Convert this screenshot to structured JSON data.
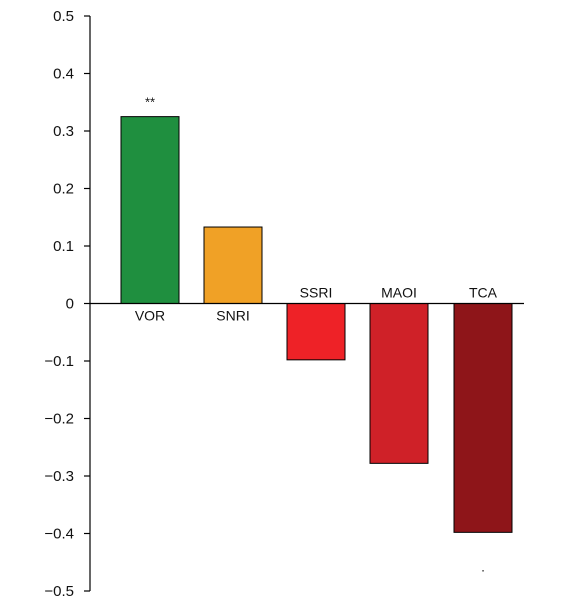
{
  "chart_data": {
    "type": "bar",
    "title": "",
    "xlabel": "",
    "ylabel": "",
    "categories": [
      "VOR",
      "SNRI",
      "SSRI",
      "MAOI",
      "TCA"
    ],
    "values": [
      0.325,
      0.133,
      -0.098,
      -0.278,
      -0.398
    ],
    "colors": [
      "#1f8f3f",
      "#f0a126",
      "#ee2227",
      "#cf2128",
      "#8e1519"
    ],
    "annotations": [
      "**",
      "",
      "",
      "",
      "·"
    ],
    "ylim": [
      -0.5,
      0.5
    ],
    "yticks": [
      0.5,
      0.4,
      0.3,
      0.2,
      0.1,
      0,
      -0.1,
      -0.2,
      -0.3,
      -0.4,
      -0.5
    ],
    "ytick_labels": [
      "0.5",
      "0.4",
      "0.3",
      "0.2",
      "0.1",
      "0",
      "−0.1",
      "−0.2",
      "−0.3",
      "−0.4",
      "−0.5"
    ],
    "grid": false,
    "legend": "none"
  }
}
